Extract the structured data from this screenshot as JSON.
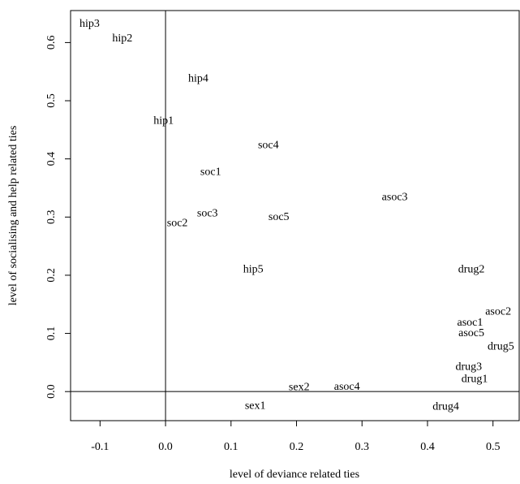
{
  "chart_data": {
    "type": "scatter",
    "xlabel": "level of deviance related ties",
    "ylabel": "level of socialising and help related ties",
    "xlim": [
      -0.145,
      0.54
    ],
    "ylim": [
      -0.05,
      0.655
    ],
    "xticks": [
      -0.1,
      0.0,
      0.1,
      0.2,
      0.3,
      0.4,
      0.5
    ],
    "xtick_labels": [
      "-0.1",
      "0.0",
      "0.1",
      "0.2",
      "0.3",
      "0.4",
      "0.5"
    ],
    "yticks": [
      0.0,
      0.1,
      0.2,
      0.3,
      0.4,
      0.5,
      0.6
    ],
    "ytick_labels": [
      "0.0",
      "0.1",
      "0.2",
      "0.3",
      "0.4",
      "0.5",
      "0.6"
    ],
    "reference_lines": {
      "x": 0,
      "y": 0
    },
    "grid": false,
    "legend": "none",
    "points": [
      {
        "label": "hip3",
        "x": -0.116,
        "y": 0.632
      },
      {
        "label": "hip2",
        "x": -0.066,
        "y": 0.607
      },
      {
        "label": "hip4",
        "x": 0.05,
        "y": 0.538
      },
      {
        "label": "hip1",
        "x": -0.003,
        "y": 0.465
      },
      {
        "label": "soc4",
        "x": 0.157,
        "y": 0.423
      },
      {
        "label": "soc1",
        "x": 0.069,
        "y": 0.377
      },
      {
        "label": "asoc3",
        "x": 0.35,
        "y": 0.334
      },
      {
        "label": "soc3",
        "x": 0.064,
        "y": 0.306
      },
      {
        "label": "soc5",
        "x": 0.173,
        "y": 0.3
      },
      {
        "label": "soc2",
        "x": 0.018,
        "y": 0.289
      },
      {
        "label": "hip5",
        "x": 0.134,
        "y": 0.21
      },
      {
        "label": "drug2",
        "x": 0.467,
        "y": 0.21
      },
      {
        "label": "asoc2",
        "x": 0.508,
        "y": 0.137
      },
      {
        "label": "asoc1",
        "x": 0.465,
        "y": 0.118
      },
      {
        "label": "asoc5",
        "x": 0.467,
        "y": 0.1
      },
      {
        "label": "drug5",
        "x": 0.512,
        "y": 0.077
      },
      {
        "label": "drug3",
        "x": 0.463,
        "y": 0.042
      },
      {
        "label": "drug1",
        "x": 0.472,
        "y": 0.021
      },
      {
        "label": "sex2",
        "x": 0.204,
        "y": 0.007
      },
      {
        "label": "asoc4",
        "x": 0.277,
        "y": 0.008
      },
      {
        "label": "sex1",
        "x": 0.137,
        "y": -0.025
      },
      {
        "label": "drug4",
        "x": 0.428,
        "y": -0.026
      }
    ]
  }
}
